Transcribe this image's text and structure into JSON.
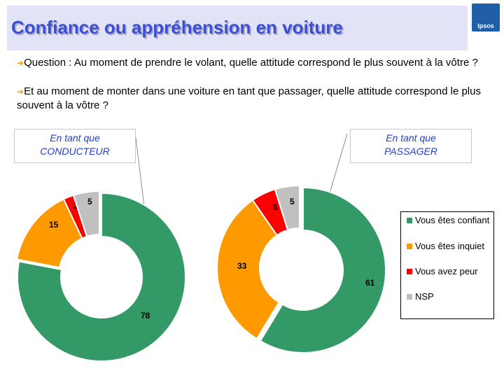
{
  "header": {
    "title": "Confiance ou appréhension en voiture",
    "logo_text": "Ipsos"
  },
  "questions": [
    {
      "arrow": "➔",
      "text": "Question  : Au moment de prendre le volant, quelle attitude correspond le plus souvent à la vôtre ?"
    },
    {
      "arrow": "➔",
      "text": "Et au moment de monter dans une voiture en tant que passager, quelle attitude correspond le plus souvent à la vôtre ?"
    }
  ],
  "boxes": {
    "conducteur": {
      "line1": "En tant que",
      "line2": "CONDUCTEUR"
    },
    "passager": {
      "line1": "En tant que",
      "line2": "PASSAGER"
    }
  },
  "legend": [
    {
      "label": "Vous êtes confiant",
      "color": "#339966"
    },
    {
      "label": "Vous êtes inquiet",
      "color": "#ff9900"
    },
    {
      "label": "Vous avez peur",
      "color": "#ff0000"
    },
    {
      "label": "NSP",
      "color": "#c0c0c0"
    }
  ],
  "chart_data": [
    {
      "type": "pie",
      "subtype": "donut",
      "title": "En tant que CONDUCTEUR",
      "categories": [
        "Vous êtes confiant",
        "Vous êtes inquiet",
        "Vous avez peur",
        "NSP"
      ],
      "values": [
        78,
        15,
        2,
        5
      ],
      "colors": [
        "#339966",
        "#ff9900",
        "#ff0000",
        "#c0c0c0"
      ],
      "exploded": "Vous êtes confiant"
    },
    {
      "type": "pie",
      "subtype": "donut",
      "title": "En tant que PASSAGER",
      "categories": [
        "Vous êtes confiant",
        "Vous êtes inquiet",
        "Vous avez peur",
        "NSP"
      ],
      "values": [
        61,
        33,
        5,
        5
      ],
      "colors": [
        "#339966",
        "#ff9900",
        "#ff0000",
        "#c0c0c0"
      ],
      "exploded": "Vous êtes confiant"
    }
  ]
}
